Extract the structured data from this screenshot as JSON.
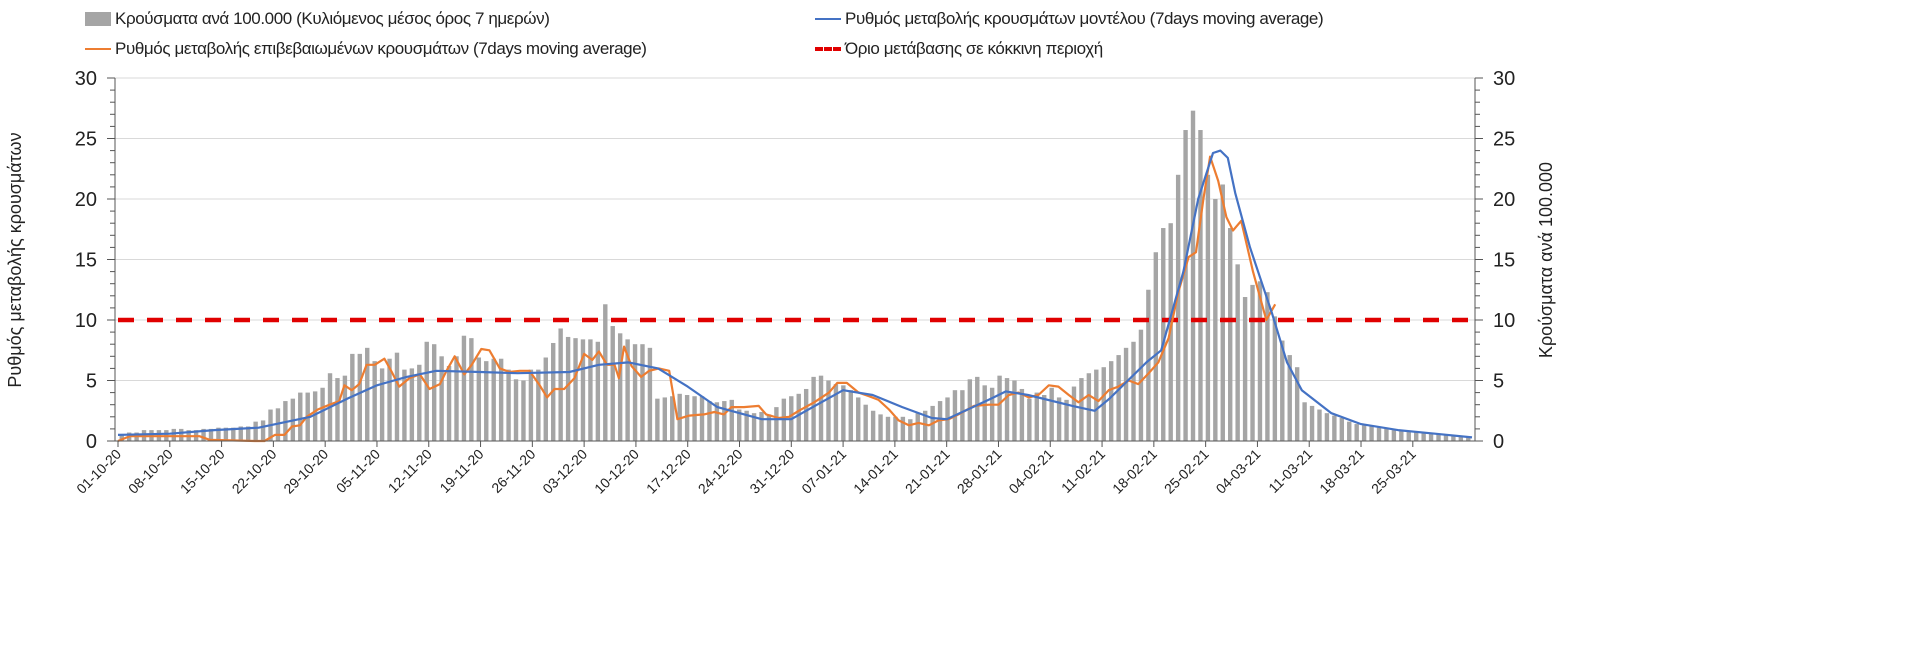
{
  "chart_data": {
    "type": "bar+line",
    "legend": {
      "bars": "Κρούσματα ανά 100.000 (Κυλιόμενος μέσος όρος 7 ημερών)",
      "model": "Ρυθμός μεταβολής κρουσμάτων μοντέλου (7days moving average)",
      "confirmed": "Ρυθμός μεταβολής επιβεβαιωμένων κρουσμάτων (7days moving average)",
      "threshold": "Όριο μετάβασης σε κόκκινη περιοχή"
    },
    "ylabel_left": "Ρυθμός μεταβολής κρουσμάτων",
    "ylabel_right": "Κρούσματα ανά 100.000",
    "ylim": [
      0,
      30
    ],
    "yticks": [
      "0",
      "5",
      "10",
      "15",
      "20",
      "25",
      "30"
    ],
    "x_day_range": [
      0,
      183
    ],
    "xtick_step_days": 7,
    "xticks": [
      "01-10-20",
      "08-10-20",
      "15-10-20",
      "22-10-20",
      "29-10-20",
      "05-11-20",
      "12-11-20",
      "19-11-20",
      "26-11-20",
      "03-12-20",
      "10-12-20",
      "17-12-20",
      "24-12-20",
      "31-12-20",
      "07-01-21",
      "14-01-21",
      "21-01-21",
      "28-01-21",
      "04-02-21",
      "11-02-21",
      "18-02-21",
      "25-02-21",
      "04-03-21",
      "11-03-21",
      "18-03-21",
      "25-03-21"
    ],
    "threshold": 10,
    "colors": {
      "bars": "#a5a5a5",
      "model": "#4472c4",
      "confirmed": "#ed7d31",
      "threshold": "#e00000",
      "grid": "#d9d9d9"
    },
    "bars": [
      0.5,
      0.7,
      0.7,
      0.9,
      0.9,
      0.9,
      0.9,
      1.0,
      1.0,
      0.9,
      0.9,
      1.0,
      1.0,
      1.1,
      1.1,
      1.1,
      1.2,
      1.2,
      1.6,
      1.7,
      2.6,
      2.7,
      3.3,
      3.5,
      4.0,
      4.0,
      4.1,
      4.4,
      5.6,
      5.2,
      5.4,
      7.2,
      7.2,
      7.7,
      6.6,
      6.0,
      6.8,
      7.3,
      5.9,
      6.0,
      6.3,
      8.2,
      8.0,
      7.0,
      6.2,
      7.0,
      8.7,
      8.5,
      6.9,
      6.6,
      6.8,
      6.8,
      5.9,
      5.1,
      5.0,
      5.9,
      5.9,
      6.9,
      8.1,
      9.3,
      8.6,
      8.5,
      8.4,
      8.4,
      8.2,
      11.3,
      9.5,
      8.9,
      8.4,
      8.0,
      8.0,
      7.7,
      3.5,
      3.6,
      3.7,
      3.9,
      3.8,
      3.7,
      3.7,
      3.3,
      3.2,
      3.3,
      3.4,
      2.6,
      2.5,
      2.3,
      2.4,
      2.2,
      2.8,
      3.5,
      3.7,
      3.9,
      4.3,
      5.3,
      5.4,
      5.0,
      4.7,
      4.6,
      4.2,
      3.6,
      3.0,
      2.5,
      2.2,
      2.0,
      2.0,
      2.0,
      1.8,
      2.3,
      2.5,
      2.9,
      3.3,
      3.6,
      4.2,
      4.2,
      5.1,
      5.3,
      4.6,
      4.4,
      5.4,
      5.2,
      5.0,
      4.3,
      3.5,
      4.0,
      3.8,
      4.4,
      3.6,
      3.4,
      4.5,
      5.2,
      5.6,
      5.9,
      6.1,
      6.6,
      7.1,
      7.7,
      8.2,
      9.2,
      12.5,
      15.6,
      17.6,
      18.0,
      22.0,
      25.7,
      27.3,
      25.7,
      22.0,
      20.0,
      21.2,
      17.6,
      14.6,
      11.9,
      12.9,
      13.2,
      12.3,
      10.3,
      8.3,
      7.1,
      6.1,
      3.2,
      2.9,
      2.6,
      2.3,
      2.1,
      1.9,
      1.6,
      1.4,
      1.3,
      1.2,
      1.1,
      1.0,
      0.9,
      0.9,
      0.8,
      0.8,
      0.7,
      0.7,
      0.6,
      0.5,
      0.5,
      0.4,
      0.3
    ],
    "model_series": [
      [
        0,
        0.5
      ],
      [
        7,
        0.6
      ],
      [
        13,
        0.9
      ],
      [
        19,
        1.1
      ],
      [
        26,
        2.0
      ],
      [
        31,
        3.5
      ],
      [
        35,
        4.6
      ],
      [
        39,
        5.3
      ],
      [
        43,
        5.8
      ],
      [
        49,
        5.7
      ],
      [
        54,
        5.6
      ],
      [
        61,
        5.7
      ],
      [
        65,
        6.3
      ],
      [
        69,
        6.5
      ],
      [
        73,
        6.0
      ],
      [
        77,
        4.5
      ],
      [
        81,
        2.8
      ],
      [
        87,
        1.8
      ],
      [
        91,
        1.8
      ],
      [
        93,
        2.5
      ],
      [
        98,
        4.2
      ],
      [
        102,
        3.8
      ],
      [
        106,
        2.8
      ],
      [
        110,
        1.9
      ],
      [
        112,
        1.8
      ],
      [
        118,
        3.5
      ],
      [
        120,
        4.1
      ],
      [
        123,
        3.8
      ],
      [
        129,
        2.9
      ],
      [
        132,
        2.5
      ],
      [
        134,
        3.5
      ],
      [
        139,
        6.5
      ],
      [
        141,
        7.5
      ],
      [
        144,
        14
      ],
      [
        146,
        20
      ],
      [
        148,
        23.8
      ],
      [
        149,
        24.0
      ],
      [
        150,
        23.4
      ],
      [
        151,
        20.5
      ],
      [
        153,
        16
      ],
      [
        156,
        10.5
      ],
      [
        158,
        6.5
      ],
      [
        160,
        4.2
      ],
      [
        164,
        2.3
      ],
      [
        168,
        1.4
      ],
      [
        173,
        0.9
      ],
      [
        178,
        0.6
      ],
      [
        183,
        0.3
      ]
    ],
    "confirmed_series": [
      [
        0,
        0
      ],
      [
        1.6,
        0.4
      ],
      [
        11,
        0.4
      ],
      [
        12.4,
        0.1
      ],
      [
        18.5,
        0
      ],
      [
        19.8,
        0
      ],
      [
        21.2,
        0.5
      ],
      [
        22.5,
        0.5
      ],
      [
        23.5,
        1.2
      ],
      [
        24.6,
        1.3
      ],
      [
        25.5,
        2.0
      ],
      [
        27,
        2.6
      ],
      [
        28.6,
        3.0
      ],
      [
        29.9,
        3.3
      ],
      [
        30.6,
        4.6
      ],
      [
        31.6,
        4.2
      ],
      [
        32.6,
        4.7
      ],
      [
        33.6,
        6.3
      ],
      [
        34.7,
        6.3
      ],
      [
        36,
        6.8
      ],
      [
        37,
        5.7
      ],
      [
        38,
        4.5
      ],
      [
        39.4,
        5.2
      ],
      [
        40.8,
        5.5
      ],
      [
        42.1,
        4.3
      ],
      [
        43.5,
        4.7
      ],
      [
        44.4,
        5.8
      ],
      [
        45.5,
        7.0
      ],
      [
        46.8,
        5.5
      ],
      [
        47.8,
        6.3
      ],
      [
        49.1,
        7.6
      ],
      [
        50.2,
        7.5
      ],
      [
        51.6,
        6.0
      ],
      [
        52.9,
        5.7
      ],
      [
        54.3,
        5.8
      ],
      [
        55.6,
        5.8
      ],
      [
        57,
        4.6
      ],
      [
        58,
        3.6
      ],
      [
        59,
        4.3
      ],
      [
        60.3,
        4.3
      ],
      [
        61.7,
        5.2
      ],
      [
        63,
        7.2
      ],
      [
        64.1,
        6.7
      ],
      [
        65,
        7.4
      ],
      [
        66.1,
        6.3
      ],
      [
        67.1,
        6.3
      ],
      [
        67.7,
        5.2
      ],
      [
        68.4,
        7.8
      ],
      [
        69.4,
        6.2
      ],
      [
        70.7,
        5.3
      ],
      [
        71.8,
        5.8
      ],
      [
        73.1,
        6.0
      ],
      [
        74.5,
        5.8
      ],
      [
        75.6,
        1.8
      ],
      [
        77.2,
        2.1
      ],
      [
        79.2,
        2.2
      ],
      [
        80.6,
        2.4
      ],
      [
        81.9,
        2.2
      ],
      [
        82.9,
        2.8
      ],
      [
        84.6,
        2.8
      ],
      [
        86.6,
        2.9
      ],
      [
        87.6,
        2.2
      ],
      [
        89.3,
        1.9
      ],
      [
        90.7,
        2.0
      ],
      [
        92,
        2.5
      ],
      [
        94.1,
        3.2
      ],
      [
        96.1,
        4.0
      ],
      [
        97.2,
        4.8
      ],
      [
        98.5,
        4.8
      ],
      [
        100.1,
        4.0
      ],
      [
        101.5,
        3.7
      ],
      [
        102.8,
        3.4
      ],
      [
        104.2,
        2.6
      ],
      [
        105.5,
        1.7
      ],
      [
        106.9,
        1.3
      ],
      [
        108.2,
        1.5
      ],
      [
        109.6,
        1.3
      ],
      [
        110.9,
        1.7
      ],
      [
        112.3,
        1.8
      ],
      [
        113.6,
        2.2
      ],
      [
        115.7,
        2.9
      ],
      [
        117.7,
        3.0
      ],
      [
        119,
        3.0
      ],
      [
        120.4,
        3.8
      ],
      [
        121.7,
        4.0
      ],
      [
        123.1,
        3.6
      ],
      [
        124.4,
        3.8
      ],
      [
        125.8,
        4.6
      ],
      [
        127.1,
        4.5
      ],
      [
        128.5,
        3.8
      ],
      [
        129.8,
        3.2
      ],
      [
        131.2,
        3.8
      ],
      [
        132.5,
        3.3
      ],
      [
        133.9,
        4.2
      ],
      [
        135.2,
        4.5
      ],
      [
        136.6,
        5.0
      ],
      [
        137.9,
        4.7
      ],
      [
        139.3,
        5.6
      ],
      [
        140.6,
        6.5
      ],
      [
        142,
        8.5
      ],
      [
        143.3,
        12.3
      ],
      [
        144.7,
        15.2
      ],
      [
        145.7,
        15.6
      ],
      [
        146.7,
        20
      ],
      [
        147.6,
        23.5
      ],
      [
        148.7,
        21.5
      ],
      [
        149.8,
        18.5
      ],
      [
        150.7,
        17.4
      ],
      [
        151.8,
        18.2
      ],
      [
        153.4,
        14
      ],
      [
        155.2,
        10
      ],
      [
        156.4,
        11.3
      ]
    ]
  }
}
